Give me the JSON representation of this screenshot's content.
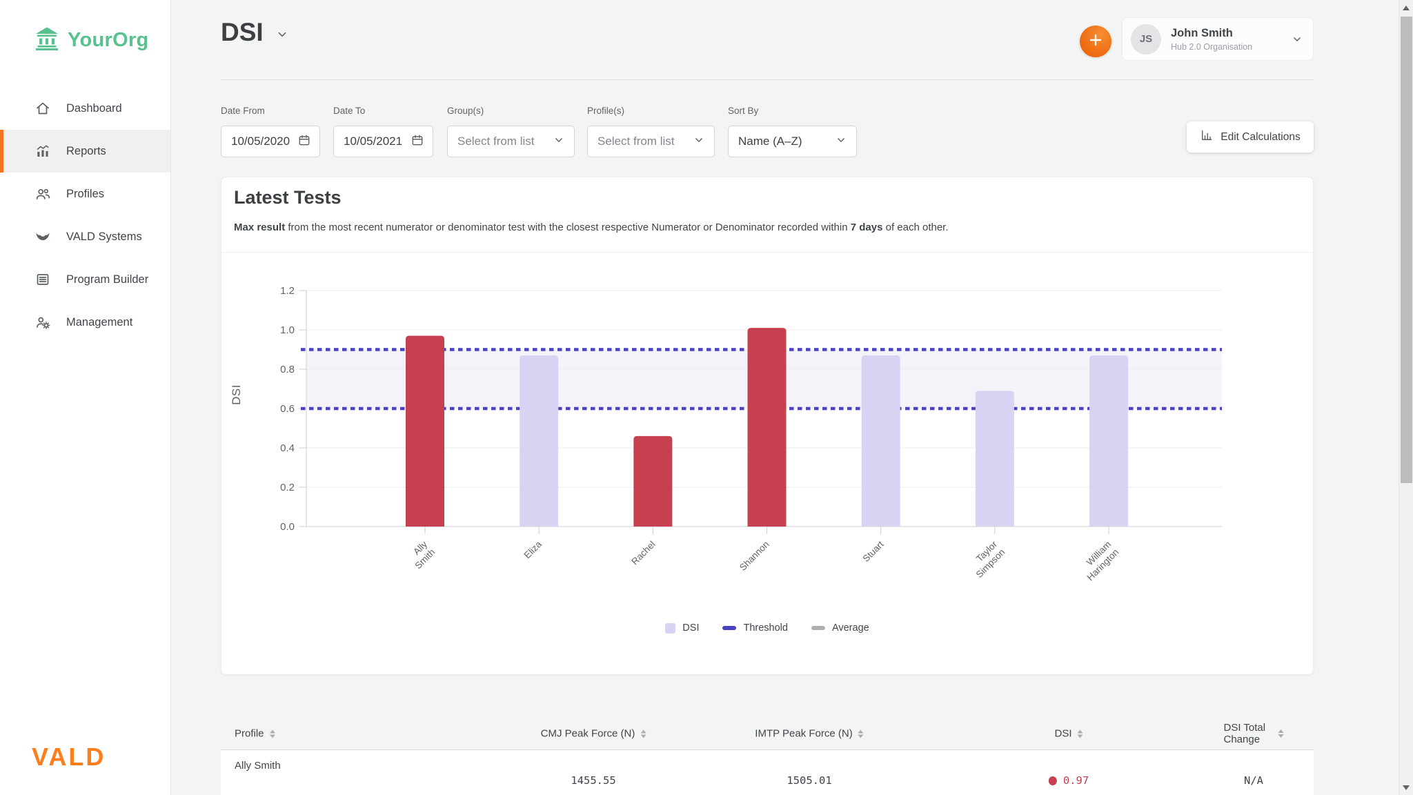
{
  "colors": {
    "accent_orange": "#f47421",
    "plus_orange": "#ee6a10",
    "vald_orange": "#ff7d1a",
    "logo_green": "#57c28f",
    "dsi_red": "#c64050",
    "dsi_lavender": "#d9d3f3",
    "threshold_indigo": "#4b42be",
    "average_gray": "#b0b0b0",
    "band_lavender": "#f4f3fa"
  },
  "brand": {
    "org_name": "YourOrg",
    "footer_logo": "VALD"
  },
  "sidebar": {
    "items": [
      {
        "label": "Dashboard"
      },
      {
        "label": "Reports"
      },
      {
        "label": "Profiles"
      },
      {
        "label": "VALD Systems"
      },
      {
        "label": "Program Builder"
      },
      {
        "label": "Management"
      }
    ]
  },
  "header": {
    "title": "DSI",
    "user": {
      "initials": "JS",
      "name": "John Smith",
      "org": "Hub 2.0 Organisation"
    }
  },
  "filters": {
    "date_from": {
      "label": "Date From",
      "value": "10/05/2020"
    },
    "date_to": {
      "label": "Date To",
      "value": "10/05/2021"
    },
    "groups": {
      "label": "Group(s)",
      "placeholder": "Select from list"
    },
    "profiles": {
      "label": "Profile(s)",
      "placeholder": "Select from list"
    },
    "sort_by": {
      "label": "Sort By",
      "value": "Name (A–Z)"
    },
    "edit_calculations": "Edit Calculations"
  },
  "card": {
    "title": "Latest Tests",
    "desc_bold1": "Max result",
    "desc_mid": " from the most recent numerator or denominator test with the closest respective Numerator or Denominator recorded within ",
    "desc_bold2": "7 days",
    "desc_end": " of each other."
  },
  "chart_data": {
    "type": "bar",
    "title": "Latest Tests",
    "ylabel": "DSI",
    "xlabel": "",
    "categories": [
      "Ally Smith",
      "Eliza",
      "Rachel",
      "Shannon",
      "Stuart",
      "Taylor Simpson",
      "William Harington"
    ],
    "values": [
      0.97,
      0.87,
      0.46,
      1.01,
      0.87,
      0.69,
      0.87
    ],
    "ylim": [
      0,
      1.2
    ],
    "yticks": [
      0.0,
      0.2,
      0.4,
      0.6,
      0.8,
      1.0,
      1.2
    ],
    "threshold_upper": 0.9,
    "threshold_lower": 0.6,
    "grid": true,
    "legend_position": "bottom",
    "legend": [
      "DSI",
      "Threshold",
      "Average"
    ],
    "series_note": "bars outside threshold band rendered red, inside rendered lavender"
  },
  "table": {
    "columns": [
      "Profile",
      "CMJ Peak Force (N)",
      "IMTP Peak Force (N)",
      "DSI",
      "DSI Total Change"
    ],
    "rows": [
      {
        "profile": "Ally Smith",
        "cmj": "1455.55",
        "imtp": "1505.01",
        "dsi": "0.97",
        "change": "N/A"
      }
    ]
  }
}
